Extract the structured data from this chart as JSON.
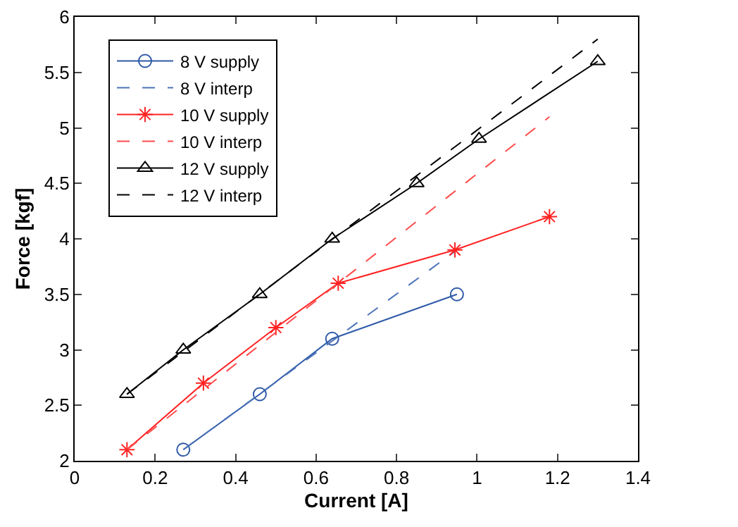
{
  "chart_data": {
    "type": "line",
    "xlabel": "Current [A]",
    "ylabel": "Force [kgf]",
    "xlim": [
      0,
      1.4
    ],
    "xticks": [
      0,
      0.2,
      0.4,
      0.6,
      0.8,
      1,
      1.2,
      1.4
    ],
    "ylim": [
      2,
      6
    ],
    "yticks": [
      2,
      2.5,
      3,
      3.5,
      4,
      4.5,
      5,
      5.5,
      6
    ],
    "grid": false,
    "legend": "top left",
    "series": [
      {
        "name": "8 V supply",
        "color": "#2f5aa8",
        "marker": "circle",
        "line_style": "solid",
        "x": [
          0.27,
          0.46,
          0.64,
          0.95
        ],
        "values": [
          2.1,
          2.6,
          3.1,
          3.5
        ]
      },
      {
        "name": "8 V interp",
        "color": "#4a72b8",
        "marker": "none",
        "line_style": "dashed",
        "x": [
          0.27,
          0.95
        ],
        "values": [
          2.1,
          3.9
        ]
      },
      {
        "name": "10 V supply",
        "color": "#ff2222",
        "marker": "cross",
        "line_style": "solid",
        "x": [
          0.13,
          0.32,
          0.5,
          0.655,
          0.945,
          1.18
        ],
        "values": [
          2.1,
          2.7,
          3.2,
          3.6,
          3.9,
          4.2
        ]
      },
      {
        "name": "10 V interp",
        "color": "#ff4a4a",
        "marker": "none",
        "line_style": "dashed",
        "x": [
          0.13,
          1.18
        ],
        "values": [
          2.1,
          5.1
        ]
      },
      {
        "name": "12 V supply",
        "color": "#000000",
        "marker": "triangle",
        "line_style": "solid",
        "x": [
          0.13,
          0.27,
          0.46,
          0.64,
          0.85,
          1.005,
          1.3
        ],
        "values": [
          2.6,
          3.0,
          3.5,
          4.0,
          4.5,
          4.9,
          5.6
        ]
      },
      {
        "name": "12 V interp",
        "color": "#000000",
        "marker": "none",
        "line_style": "dashed",
        "x": [
          0.13,
          1.3
        ],
        "values": [
          2.6,
          5.8
        ]
      }
    ]
  }
}
